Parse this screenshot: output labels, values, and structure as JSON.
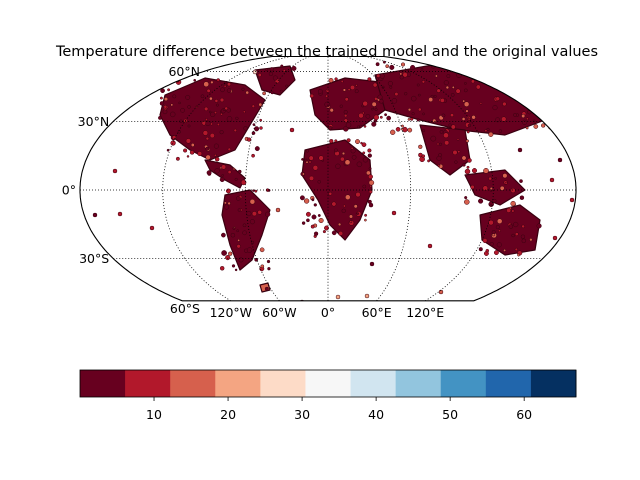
{
  "chart_data": {
    "type": "map",
    "title": "Temperature difference between the trained model and the original values",
    "projection": "robinson",
    "grid": true,
    "lat_ticks": [
      {
        "value": 60,
        "label": "60°N"
      },
      {
        "value": 30,
        "label": "30°N"
      },
      {
        "value": 0,
        "label": "0°"
      },
      {
        "value": -30,
        "label": "30°S"
      },
      {
        "value": -60,
        "label": "60°S"
      }
    ],
    "lon_ticks": [
      {
        "value": -120,
        "label": "120°W"
      },
      {
        "value": -60,
        "label": "60°W"
      },
      {
        "value": 0,
        "label": "0°"
      },
      {
        "value": 60,
        "label": "60°E"
      },
      {
        "value": 120,
        "label": "120°E"
      }
    ],
    "colorbar": {
      "orientation": "horizontal",
      "cmap": "RdBu",
      "range": [
        0,
        67
      ],
      "levels": 11,
      "colors": [
        "#67001f",
        "#b2182b",
        "#d6604d",
        "#f4a582",
        "#fddbc7",
        "#f7f7f7",
        "#d1e5f0",
        "#92c5de",
        "#4393c3",
        "#2166ac",
        "#053061"
      ],
      "ticks": [
        {
          "value": 10,
          "label": "10"
        },
        {
          "value": 20,
          "label": "20"
        },
        {
          "value": 30,
          "label": "30"
        },
        {
          "value": 40,
          "label": "40"
        },
        {
          "value": 50,
          "label": "50"
        },
        {
          "value": 60,
          "label": "60"
        }
      ]
    },
    "regions": [
      {
        "name": "North America",
        "lon": -100,
        "lat": 45,
        "value": 3
      },
      {
        "name": "Central America",
        "lon": -90,
        "lat": 17,
        "value": 4
      },
      {
        "name": "South America",
        "lon": -60,
        "lat": -18,
        "value": 6
      },
      {
        "name": "Greenland",
        "lon": -40,
        "lat": 72,
        "value": 3
      },
      {
        "name": "Europe",
        "lon": 15,
        "lat": 50,
        "value": 2
      },
      {
        "name": "Africa",
        "lon": 15,
        "lat": 5,
        "value": 5
      },
      {
        "name": "Asia",
        "lon": 90,
        "lat": 45,
        "value": 2
      },
      {
        "name": "South Asia",
        "lon": 80,
        "lat": 20,
        "value": 3
      },
      {
        "name": "Southeast Asia",
        "lon": 110,
        "lat": 5,
        "value": 5
      },
      {
        "name": "Australia",
        "lon": 135,
        "lat": -25,
        "value": 4
      },
      {
        "name": "Antarctic islands",
        "lon": -40,
        "lat": -65,
        "value": 15
      }
    ]
  }
}
